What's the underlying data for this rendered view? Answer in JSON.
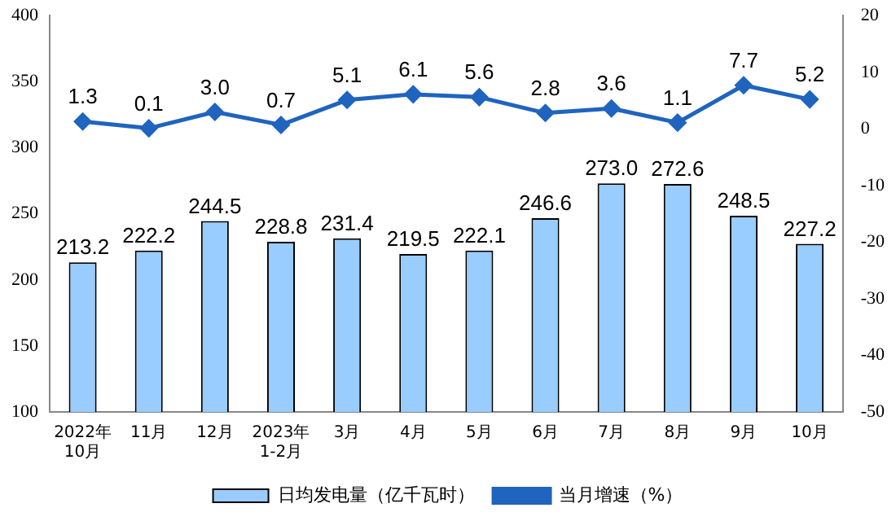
{
  "chart_data": {
    "type": "bar",
    "categories": [
      "2022年\n10月",
      "11月",
      "12月",
      "2023年\n1-2月",
      "3月",
      "4月",
      "5月",
      "6月",
      "7月",
      "8月",
      "9月",
      "10月"
    ],
    "series": [
      {
        "name": "日均发电量（亿千瓦时）",
        "color": "#99ccff",
        "values": [
          213.2,
          222.2,
          244.5,
          228.8,
          231.4,
          219.5,
          222.1,
          246.6,
          273.0,
          272.6,
          248.5,
          227.2
        ],
        "value_labels": [
          "213.2",
          "222.2",
          "244.5",
          "228.8",
          "231.4",
          "219.5",
          "222.1",
          "246.6",
          "273.0",
          "272.6",
          "248.5",
          "227.2"
        ]
      },
      {
        "name": "当月增速（%）",
        "type": "line",
        "axis": "y2",
        "color": "#1f64be",
        "marker": "diamond",
        "values": [
          1.3,
          0.1,
          3.0,
          0.7,
          5.1,
          6.1,
          5.6,
          2.8,
          3.6,
          1.1,
          7.7,
          5.2
        ],
        "value_labels": [
          "1.3",
          "0.1",
          "3.0",
          "0.7",
          "5.1",
          "6.1",
          "5.6",
          "2.8",
          "3.6",
          "1.1",
          "7.7",
          "5.2"
        ]
      }
    ],
    "ylim": [
      100,
      400
    ],
    "yticks": [
      100,
      150,
      200,
      250,
      300,
      350,
      400
    ],
    "y2lim": [
      -50,
      20
    ],
    "y2ticks": [
      -50,
      -40,
      -30,
      -20,
      -10,
      0,
      10,
      20
    ],
    "legend": "bottom",
    "grid": false
  }
}
